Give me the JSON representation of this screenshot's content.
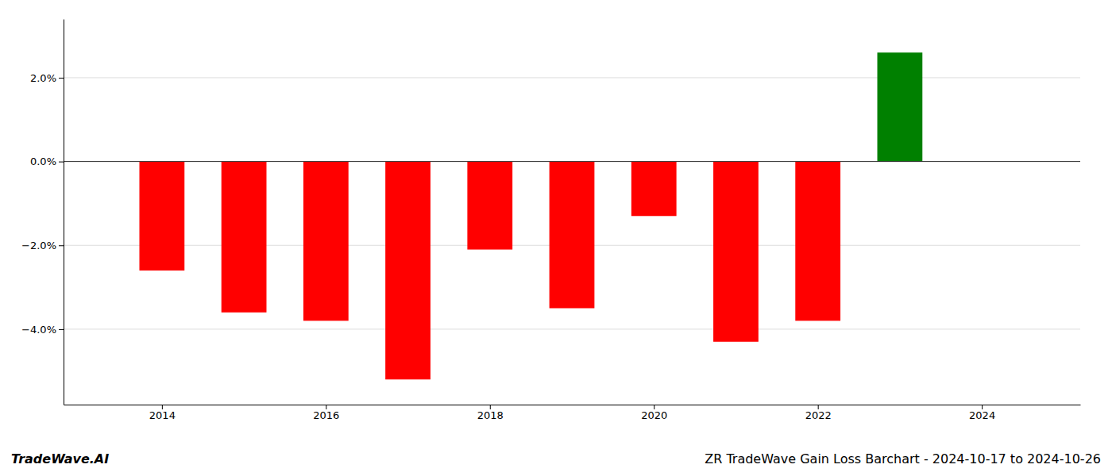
{
  "chart_data": {
    "type": "bar",
    "title": "ZR TradeWave Gain Loss Barchart - 2024-10-17 to 2024-10-26",
    "annotations": [
      "TradeWave.AI"
    ],
    "x": [
      2014,
      2015,
      2016,
      2017,
      2018,
      2019,
      2020,
      2021,
      2022,
      2023
    ],
    "values": [
      -0.026,
      -0.036,
      -0.038,
      -0.052,
      -0.021,
      -0.035,
      -0.013,
      -0.043,
      -0.038,
      0.026
    ],
    "colors": [
      "#ff0000",
      "#ff0000",
      "#ff0000",
      "#ff0000",
      "#ff0000",
      "#ff0000",
      "#ff0000",
      "#ff0000",
      "#ff0000",
      "#008000"
    ],
    "xlim": [
      2012.8,
      2025.2
    ],
    "xticks": [
      2014,
      2016,
      2018,
      2020,
      2022,
      2024
    ],
    "ylim": [
      -0.058,
      0.034
    ],
    "yticks": [
      {
        "value": -0.04,
        "label": "−4.0%"
      },
      {
        "value": -0.02,
        "label": "−2.0%"
      },
      {
        "value": 0.0,
        "label": "0.0%"
      },
      {
        "value": 0.02,
        "label": "2.0%"
      }
    ],
    "grid": true
  }
}
